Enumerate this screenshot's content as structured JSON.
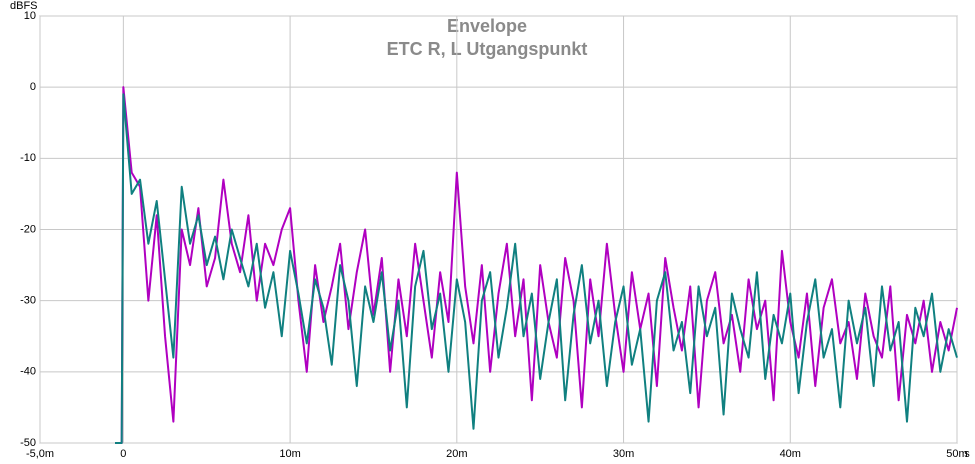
{
  "chart_data": {
    "type": "line",
    "title": "Envelope",
    "subtitle": "ETC R, L Utgangspunkt",
    "y_label": "dBFS",
    "x_label": "s",
    "xlim": [
      -0.005,
      0.05
    ],
    "ylim": [
      -50,
      10
    ],
    "xticks": [
      {
        "value": -0.005,
        "label": "-5,0m"
      },
      0,
      {
        "value": 0.01,
        "label": "10m"
      },
      {
        "value": 0.02,
        "label": "20m"
      },
      {
        "value": 0.03,
        "label": "30m"
      },
      {
        "value": 0.04,
        "label": "40m"
      },
      {
        "value": 0.05,
        "label": "50m"
      }
    ],
    "yticks": [
      10,
      0,
      -10,
      -20,
      -30,
      -40,
      -50
    ],
    "grid": true,
    "x": [
      -0.0005,
      -0.0001,
      0,
      0.0005,
      0.001,
      0.0015,
      0.002,
      0.0025,
      0.003,
      0.0035,
      0.004,
      0.0045,
      0.005,
      0.0055,
      0.006,
      0.0065,
      0.007,
      0.0075,
      0.008,
      0.0085,
      0.009,
      0.0095,
      0.01,
      0.0105,
      0.011,
      0.0115,
      0.012,
      0.0125,
      0.013,
      0.0135,
      0.014,
      0.0145,
      0.015,
      0.0155,
      0.016,
      0.0165,
      0.017,
      0.0175,
      0.018,
      0.0185,
      0.019,
      0.0195,
      0.02,
      0.0205,
      0.021,
      0.0215,
      0.022,
      0.0225,
      0.023,
      0.0235,
      0.024,
      0.0245,
      0.025,
      0.0255,
      0.026,
      0.0265,
      0.027,
      0.0275,
      0.028,
      0.0285,
      0.029,
      0.0295,
      0.03,
      0.0305,
      0.031,
      0.0315,
      0.032,
      0.0325,
      0.033,
      0.0335,
      0.034,
      0.0345,
      0.035,
      0.0355,
      0.036,
      0.0365,
      0.037,
      0.0375,
      0.038,
      0.0385,
      0.039,
      0.0395,
      0.04,
      0.0405,
      0.041,
      0.0415,
      0.042,
      0.0425,
      0.043,
      0.0435,
      0.044,
      0.0445,
      0.045,
      0.0455,
      0.046,
      0.0465,
      0.047,
      0.0475,
      0.048,
      0.0485,
      0.049,
      0.0495,
      0.05
    ],
    "series": [
      {
        "color": "#b000c0",
        "values": [
          -50,
          -50,
          0,
          -12,
          -14,
          -30,
          -18,
          -35,
          -47,
          -20,
          -25,
          -17,
          -28,
          -24,
          -13,
          -22,
          -26,
          -18,
          -30,
          -22,
          -25,
          -20,
          -17,
          -30,
          -40,
          -25,
          -33,
          -28,
          -22,
          -34,
          -26,
          -20,
          -32,
          -24,
          -40,
          -27,
          -35,
          -22,
          -30,
          -38,
          -26,
          -33,
          -12,
          -28,
          -36,
          -25,
          -40,
          -29,
          -22,
          -35,
          -27,
          -44,
          -25,
          -33,
          -38,
          -24,
          -30,
          -45,
          -27,
          -35,
          -22,
          -32,
          -40,
          -26,
          -34,
          -29,
          -42,
          -24,
          -31,
          -37,
          -28,
          -45,
          -30,
          -26,
          -36,
          -32,
          -40,
          -27,
          -34,
          -30,
          -44,
          -23,
          -33,
          -38,
          -29,
          -42,
          -31,
          -27,
          -36,
          -33,
          -41,
          -29,
          -35,
          -38,
          -28,
          -44,
          -32,
          -36,
          -30,
          -40,
          -33,
          -37,
          -31
        ]
      },
      {
        "color": "#108080",
        "values": [
          -50,
          -50,
          -1,
          -15,
          -13,
          -22,
          -16,
          -27,
          -38,
          -14,
          -22,
          -18,
          -25,
          -21,
          -27,
          -20,
          -24,
          -28,
          -22,
          -31,
          -26,
          -35,
          -23,
          -29,
          -36,
          -27,
          -31,
          -39,
          -25,
          -30,
          -42,
          -28,
          -33,
          -26,
          -37,
          -30,
          -45,
          -28,
          -23,
          -34,
          -29,
          -40,
          -27,
          -33,
          -48,
          -30,
          -26,
          -38,
          -31,
          -22,
          -35,
          -29,
          -41,
          -33,
          -27,
          -44,
          -32,
          -25,
          -36,
          -30,
          -42,
          -33,
          -28,
          -39,
          -34,
          -47,
          -30,
          -26,
          -37,
          -33,
          -43,
          -28,
          -35,
          -31,
          -46,
          -29,
          -34,
          -38,
          -26,
          -41,
          -32,
          -36,
          -29,
          -43,
          -33,
          -27,
          -38,
          -34,
          -45,
          -30,
          -36,
          -31,
          -42,
          -28,
          -37,
          -33,
          -47,
          -31,
          -35,
          -29,
          -40,
          -34,
          -38
        ]
      }
    ]
  }
}
